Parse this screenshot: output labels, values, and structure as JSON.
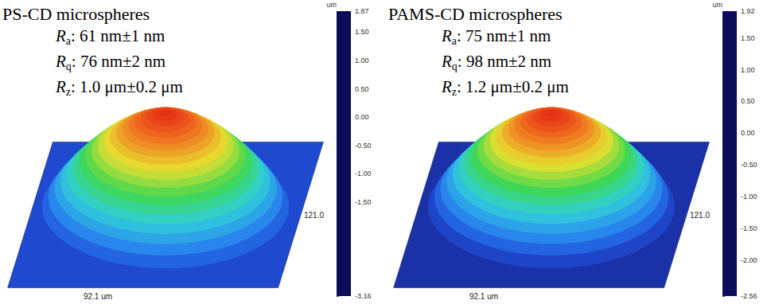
{
  "chart_data": [
    {
      "type": "surface",
      "title": "PS-CD microspheres",
      "annotations": [
        {
          "symbol": "R",
          "subscript": "a",
          "text": ": 61 nm±1 nm"
        },
        {
          "symbol": "R",
          "subscript": "q",
          "text": ": 76 nm±2 nm"
        },
        {
          "symbol": "R",
          "subscript": "z",
          "text": ": 1.0 μm±0.2 μm"
        }
      ],
      "x_size": {
        "value": 92.1,
        "label": "92.1 um"
      },
      "y_size": {
        "value": 121.0,
        "label": "121.0"
      },
      "surface": {
        "base": -2.0,
        "r": [
          1.0,
          0.95,
          0.9,
          0.85,
          0.8,
          0.75,
          0.7,
          0.65,
          0.6,
          0.55,
          0.5,
          0.45,
          0.4,
          0.35,
          0.3,
          0.25,
          0.2,
          0.15,
          0.1,
          0.05,
          0.0
        ],
        "height": [
          -1.7,
          -1.35,
          -1.05,
          -0.8,
          -0.55,
          -0.32,
          -0.1,
          0.1,
          0.3,
          0.48,
          0.65,
          0.8,
          0.95,
          1.08,
          1.2,
          1.32,
          1.42,
          1.52,
          1.6,
          1.66,
          1.7
        ]
      },
      "colorbar": {
        "unit": "um",
        "range": [
          -3.16,
          1.87
        ],
        "ticks": [
          1.87,
          {
            "value": 1.5,
            "label": "1.50"
          },
          {
            "value": 1.0,
            "label": "1.00"
          },
          {
            "value": 0.5,
            "label": "0.50"
          },
          {
            "value": 0,
            "label": "0.00"
          },
          {
            "value": -0.5,
            "label": "-0.50"
          },
          {
            "value": -1.0,
            "label": "-1.00"
          },
          {
            "value": -1.5,
            "label": "-1.50"
          },
          -3.16
        ],
        "colors": [
          "#0c0c5a",
          "#1a2a9c",
          "#2050d8",
          "#2a8ef0",
          "#30d0d8",
          "#40d850",
          "#e8e030",
          "#f07020",
          "#e01010"
        ]
      }
    },
    {
      "type": "surface",
      "title": "PAMS-CD microspheres",
      "annotations": [
        {
          "symbol": "R",
          "subscript": "a",
          "text": ": 75 nm±1 nm"
        },
        {
          "symbol": "R",
          "subscript": "q",
          "text": ": 98 nm±2 nm"
        },
        {
          "symbol": "R",
          "subscript": "z",
          "text": ": 1.2 μm±0.2 μm"
        }
      ],
      "x_size": {
        "value": 92.1,
        "label": "92.1 um"
      },
      "y_size": {
        "value": 121.0,
        "label": "121.0"
      },
      "surface": {
        "base": -1.9,
        "r": [
          1.0,
          0.95,
          0.9,
          0.85,
          0.8,
          0.75,
          0.7,
          0.65,
          0.6,
          0.55,
          0.5,
          0.45,
          0.4,
          0.35,
          0.3,
          0.25,
          0.2,
          0.15,
          0.1,
          0.05,
          0.0
        ],
        "height": [
          -1.6,
          -1.25,
          -0.95,
          -0.7,
          -0.45,
          -0.22,
          0.0,
          0.2,
          0.4,
          0.58,
          0.75,
          0.9,
          1.05,
          1.18,
          1.3,
          1.42,
          1.52,
          1.6,
          1.68,
          1.73,
          1.76
        ]
      },
      "colorbar": {
        "unit": "um",
        "range": [
          -2.56,
          1.92
        ],
        "ticks": [
          1.92,
          {
            "value": 1.5,
            "label": "1.50"
          },
          {
            "value": 1.0,
            "label": "1.00"
          },
          {
            "value": 0.5,
            "label": "0.50"
          },
          {
            "value": 0,
            "label": "0.00"
          },
          {
            "value": -0.5,
            "label": "-0.50"
          },
          {
            "value": -1.0,
            "label": "-1.00"
          },
          {
            "value": -1.5,
            "label": "-1.50"
          },
          {
            "value": -2.0,
            "label": "-2.00"
          },
          -2.56
        ],
        "colors": [
          "#0c0c5a",
          "#1a2a9c",
          "#2050d8",
          "#2a8ef0",
          "#30d0d8",
          "#40d850",
          "#e8e030",
          "#f07020",
          "#e01010"
        ]
      }
    }
  ]
}
